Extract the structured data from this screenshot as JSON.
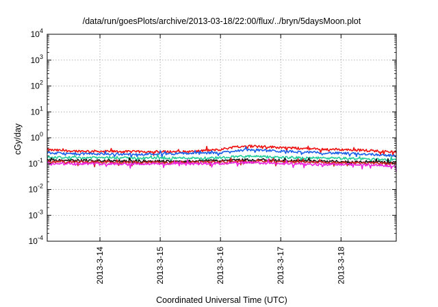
{
  "chart_data": {
    "type": "line",
    "title": "/data/run/goesPlots/archive/2013-03-18/22:00/flux/../bryn/5daysMoon.plot",
    "xlabel": "Coordinated Universal Time (UTC)",
    "ylabel": "cGy/day",
    "yscale": "log",
    "ylim": [
      0.0001,
      10000
    ],
    "xlim": [
      "2013-03-13T03:00",
      "2013-03-18T22:00"
    ],
    "grid": true,
    "y_ticks": [
      {
        "base": "10",
        "exp": "-4"
      },
      {
        "base": "10",
        "exp": "-3"
      },
      {
        "base": "10",
        "exp": "-2"
      },
      {
        "base": "10",
        "exp": "-1"
      },
      {
        "base": "10",
        "exp": "0"
      },
      {
        "base": "10",
        "exp": "1"
      },
      {
        "base": "10",
        "exp": "2"
      },
      {
        "base": "10",
        "exp": "3"
      },
      {
        "base": "10",
        "exp": "4"
      }
    ],
    "x_ticks": [
      "2013-3-14",
      "2013-3-15",
      "2013-3-16",
      "2013-3-17",
      "2013-3-18"
    ],
    "x": [
      "2013-03-13T03:00",
      "2013-03-13T12:00",
      "2013-03-14T00:00",
      "2013-03-14T12:00",
      "2013-03-15T00:00",
      "2013-03-15T12:00",
      "2013-03-16T00:00",
      "2013-03-16T06:00",
      "2013-03-16T12:00",
      "2013-03-17T00:00",
      "2013-03-17T12:00",
      "2013-03-18T00:00",
      "2013-03-18T12:00",
      "2013-03-18T22:00"
    ],
    "series": [
      {
        "color": "#ee1111",
        "values": [
          0.34,
          0.31,
          0.3,
          0.29,
          0.29,
          0.29,
          0.35,
          0.45,
          0.48,
          0.42,
          0.37,
          0.35,
          0.32,
          0.28
        ]
      },
      {
        "color": "#1a5fe8",
        "values": [
          0.26,
          0.24,
          0.24,
          0.23,
          0.24,
          0.25,
          0.26,
          0.32,
          0.34,
          0.3,
          0.27,
          0.25,
          0.23,
          0.2
        ]
      },
      {
        "color": "#22cc99",
        "values": [
          0.18,
          0.17,
          0.17,
          0.165,
          0.165,
          0.165,
          0.17,
          0.19,
          0.19,
          0.175,
          0.165,
          0.16,
          0.15,
          0.14
        ]
      },
      {
        "color": "#111111",
        "values": [
          0.135,
          0.13,
          0.13,
          0.125,
          0.125,
          0.125,
          0.13,
          0.14,
          0.14,
          0.13,
          0.125,
          0.12,
          0.115,
          0.11
        ]
      },
      {
        "color": "#cc2222",
        "values": [
          0.12,
          0.115,
          0.115,
          0.112,
          0.112,
          0.112,
          0.115,
          0.125,
          0.125,
          0.118,
          0.112,
          0.108,
          0.104,
          0.1
        ]
      },
      {
        "color": "#ee22dd",
        "values": [
          0.105,
          0.1,
          0.1,
          0.098,
          0.098,
          0.098,
          0.1,
          0.108,
          0.108,
          0.1,
          0.095,
          0.092,
          0.088,
          0.082
        ]
      }
    ]
  }
}
